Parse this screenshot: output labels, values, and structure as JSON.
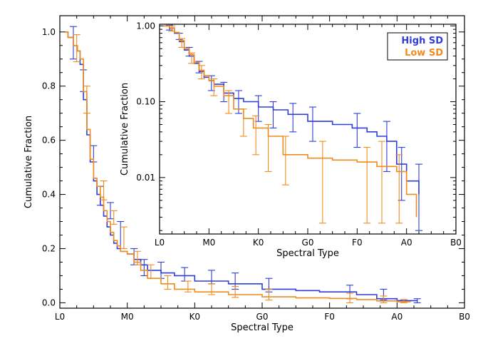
{
  "chart_data": [
    {
      "type": "line",
      "xlabel": "Spectral Type",
      "ylabel": "Cumulative Fraction",
      "x_ticks": [
        "L0",
        "M0",
        "K0",
        "G0",
        "F0",
        "A0",
        "B0"
      ],
      "xlim": [
        0,
        6
      ],
      "ylim": [
        -0.02,
        1.06
      ],
      "y_ticks": [
        "0.0",
        "0.2",
        "0.4",
        "0.6",
        "0.8",
        "1.0"
      ],
      "y_tick_values": [
        0,
        0.2,
        0.4,
        0.6,
        0.8,
        1.0
      ],
      "series": [
        {
          "name": "High SD",
          "color": "#2f3dd9",
          "x": [
            0.08,
            0.12,
            0.2,
            0.26,
            0.3,
            0.35,
            0.4,
            0.45,
            0.5,
            0.55,
            0.6,
            0.65,
            0.7,
            0.75,
            0.8,
            0.85,
            0.9,
            1.0,
            1.1,
            1.2,
            1.3,
            1.5,
            1.7,
            2.0,
            2.5,
            3.0,
            3.5,
            3.85,
            4.4,
            4.7,
            5.0,
            5.3
          ],
          "y": [
            1.0,
            0.98,
            0.95,
            0.93,
            0.88,
            0.75,
            0.62,
            0.52,
            0.45,
            0.4,
            0.36,
            0.32,
            0.28,
            0.25,
            0.22,
            0.2,
            0.19,
            0.18,
            0.16,
            0.14,
            0.12,
            0.11,
            0.1,
            0.08,
            0.07,
            0.05,
            0.045,
            0.04,
            0.03,
            0.015,
            0.008,
            0.005
          ],
          "error_bars": [
            {
              "x": 0.2,
              "y": 0.96,
              "lo": 0.9,
              "hi": 1.02
            },
            {
              "x": 0.35,
              "y": 0.82,
              "lo": 0.78,
              "hi": 0.86
            },
            {
              "x": 0.5,
              "y": 0.55,
              "lo": 0.52,
              "hi": 0.58
            },
            {
              "x": 0.6,
              "y": 0.4,
              "lo": 0.36,
              "hi": 0.43
            },
            {
              "x": 0.75,
              "y": 0.34,
              "lo": 0.31,
              "hi": 0.37
            },
            {
              "x": 0.9,
              "y": 0.24,
              "lo": 0.2,
              "hi": 0.3
            },
            {
              "x": 1.1,
              "y": 0.17,
              "lo": 0.14,
              "hi": 0.2
            },
            {
              "x": 1.25,
              "y": 0.14,
              "lo": 0.1,
              "hi": 0.16
            },
            {
              "x": 1.5,
              "y": 0.12,
              "lo": 0.09,
              "hi": 0.15
            },
            {
              "x": 1.85,
              "y": 0.11,
              "lo": 0.08,
              "hi": 0.13
            },
            {
              "x": 2.25,
              "y": 0.09,
              "lo": 0.07,
              "hi": 0.12
            },
            {
              "x": 2.6,
              "y": 0.08,
              "lo": 0.05,
              "hi": 0.11
            },
            {
              "x": 3.1,
              "y": 0.06,
              "lo": 0.04,
              "hi": 0.09
            },
            {
              "x": 4.3,
              "y": 0.04,
              "lo": 0.015,
              "hi": 0.065
            },
            {
              "x": 4.8,
              "y": 0.03,
              "lo": 0.01,
              "hi": 0.05
            },
            {
              "x": 5.3,
              "y": 0.008,
              "lo": 0.0,
              "hi": 0.015
            }
          ]
        },
        {
          "name": "Low SD",
          "color": "#f08c1e",
          "x": [
            0.08,
            0.12,
            0.2,
            0.26,
            0.3,
            0.35,
            0.4,
            0.45,
            0.5,
            0.55,
            0.6,
            0.65,
            0.7,
            0.75,
            0.8,
            0.85,
            0.9,
            1.0,
            1.1,
            1.2,
            1.3,
            1.5,
            1.7,
            2.0,
            2.5,
            3.0,
            3.5,
            4.0,
            4.4,
            4.7,
            5.0,
            5.2
          ],
          "y": [
            1.0,
            0.98,
            0.95,
            0.93,
            0.9,
            0.78,
            0.64,
            0.53,
            0.46,
            0.43,
            0.39,
            0.34,
            0.3,
            0.26,
            0.23,
            0.21,
            0.19,
            0.18,
            0.15,
            0.12,
            0.09,
            0.07,
            0.05,
            0.04,
            0.03,
            0.022,
            0.018,
            0.016,
            0.012,
            0.007,
            0.004,
            0.003
          ],
          "error_bars": [
            {
              "x": 0.25,
              "y": 0.94,
              "lo": 0.89,
              "hi": 0.99
            },
            {
              "x": 0.4,
              "y": 0.75,
              "lo": 0.7,
              "hi": 0.8
            },
            {
              "x": 0.65,
              "y": 0.42,
              "lo": 0.38,
              "hi": 0.45
            },
            {
              "x": 0.8,
              "y": 0.31,
              "lo": 0.29,
              "hi": 0.34
            },
            {
              "x": 0.95,
              "y": 0.22,
              "lo": 0.2,
              "hi": 0.28
            },
            {
              "x": 1.15,
              "y": 0.16,
              "lo": 0.14,
              "hi": 0.19
            },
            {
              "x": 1.35,
              "y": 0.11,
              "lo": 0.09,
              "hi": 0.14
            },
            {
              "x": 1.6,
              "y": 0.08,
              "lo": 0.05,
              "hi": 0.1
            },
            {
              "x": 1.9,
              "y": 0.07,
              "lo": 0.04,
              "hi": 0.08
            },
            {
              "x": 2.25,
              "y": 0.05,
              "lo": 0.03,
              "hi": 0.07
            },
            {
              "x": 2.6,
              "y": 0.04,
              "lo": 0.02,
              "hi": 0.06
            },
            {
              "x": 3.1,
              "y": 0.03,
              "lo": 0.01,
              "hi": 0.05
            },
            {
              "x": 4.3,
              "y": 0.02,
              "lo": 0.0,
              "hi": 0.035
            },
            {
              "x": 4.8,
              "y": 0.01,
              "lo": 0.0,
              "hi": 0.025
            },
            {
              "x": 5.1,
              "y": 0.005,
              "lo": 0.0,
              "hi": 0.012
            }
          ]
        }
      ]
    },
    {
      "type": "line",
      "xlabel": "Spectral Type",
      "ylabel": "Cumulative Fraction",
      "x_ticks": [
        "L0",
        "M0",
        "K0",
        "G0",
        "F0",
        "A0",
        "B0"
      ],
      "xlim": [
        0,
        6
      ],
      "y_scale": "log",
      "ylim": [
        0.0018,
        1.05
      ],
      "y_ticks": [
        "0.01",
        "0.10",
        "1.00"
      ],
      "y_tick_values": [
        0.01,
        0.1,
        1.0
      ],
      "legend": {
        "position": "top-right",
        "entries": [
          "High SD",
          "Low SD"
        ]
      },
      "series": [
        {
          "name": "High SD",
          "color": "#2f3dd9",
          "x": [
            0.08,
            0.2,
            0.3,
            0.4,
            0.5,
            0.6,
            0.7,
            0.8,
            0.9,
            1.0,
            1.1,
            1.3,
            1.5,
            1.7,
            2.0,
            2.3,
            2.6,
            3.0,
            3.5,
            3.9,
            4.2,
            4.4,
            4.6,
            4.8,
            5.0,
            5.25
          ],
          "y": [
            1.0,
            0.93,
            0.8,
            0.62,
            0.48,
            0.4,
            0.32,
            0.25,
            0.21,
            0.19,
            0.17,
            0.13,
            0.11,
            0.1,
            0.085,
            0.078,
            0.068,
            0.055,
            0.05,
            0.045,
            0.04,
            0.035,
            0.03,
            0.015,
            0.009,
            0.006
          ],
          "error_bars": [
            {
              "x": 0.2,
              "y": 0.95,
              "lo": 0.88,
              "hi": 1.02
            },
            {
              "x": 0.4,
              "y": 0.72,
              "lo": 0.66,
              "hi": 0.8
            },
            {
              "x": 0.6,
              "y": 0.45,
              "lo": 0.4,
              "hi": 0.52
            },
            {
              "x": 0.8,
              "y": 0.28,
              "lo": 0.24,
              "hi": 0.34
            },
            {
              "x": 1.05,
              "y": 0.18,
              "lo": 0.14,
              "hi": 0.22
            },
            {
              "x": 1.3,
              "y": 0.14,
              "lo": 0.1,
              "hi": 0.18
            },
            {
              "x": 1.6,
              "y": 0.1,
              "lo": 0.07,
              "hi": 0.14
            },
            {
              "x": 2.0,
              "y": 0.085,
              "lo": 0.055,
              "hi": 0.12
            },
            {
              "x": 2.3,
              "y": 0.078,
              "lo": 0.045,
              "hi": 0.1
            },
            {
              "x": 2.7,
              "y": 0.068,
              "lo": 0.04,
              "hi": 0.095
            },
            {
              "x": 3.1,
              "y": 0.055,
              "lo": 0.03,
              "hi": 0.085
            },
            {
              "x": 4.0,
              "y": 0.045,
              "lo": 0.025,
              "hi": 0.07
            },
            {
              "x": 4.6,
              "y": 0.03,
              "lo": 0.012,
              "hi": 0.055
            },
            {
              "x": 4.9,
              "y": 0.015,
              "lo": 0.005,
              "hi": 0.025
            },
            {
              "x": 5.25,
              "y": 0.006,
              "lo": 0.002,
              "hi": 0.015
            }
          ]
        },
        {
          "name": "Low SD",
          "color": "#f08c1e",
          "x": [
            0.08,
            0.2,
            0.3,
            0.4,
            0.5,
            0.6,
            0.7,
            0.8,
            0.9,
            1.0,
            1.1,
            1.3,
            1.5,
            1.7,
            1.9,
            2.2,
            2.5,
            3.0,
            3.5,
            4.0,
            4.4,
            4.8,
            5.0,
            5.2
          ],
          "y": [
            1.0,
            0.94,
            0.82,
            0.64,
            0.5,
            0.42,
            0.33,
            0.26,
            0.22,
            0.19,
            0.16,
            0.12,
            0.08,
            0.06,
            0.045,
            0.035,
            0.02,
            0.018,
            0.017,
            0.016,
            0.014,
            0.012,
            0.006,
            0.003
          ],
          "error_bars": [
            {
              "x": 0.25,
              "y": 0.92,
              "lo": 0.85,
              "hi": 1.0
            },
            {
              "x": 0.45,
              "y": 0.6,
              "lo": 0.52,
              "hi": 0.68
            },
            {
              "x": 0.65,
              "y": 0.38,
              "lo": 0.32,
              "hi": 0.44
            },
            {
              "x": 0.85,
              "y": 0.24,
              "lo": 0.2,
              "hi": 0.3
            },
            {
              "x": 1.1,
              "y": 0.16,
              "lo": 0.12,
              "hi": 0.2
            },
            {
              "x": 1.4,
              "y": 0.11,
              "lo": 0.07,
              "hi": 0.14
            },
            {
              "x": 1.7,
              "y": 0.06,
              "lo": 0.035,
              "hi": 0.08
            },
            {
              "x": 1.95,
              "y": 0.045,
              "lo": 0.02,
              "hi": 0.065
            },
            {
              "x": 2.2,
              "y": 0.035,
              "lo": 0.012,
              "hi": 0.05
            },
            {
              "x": 2.55,
              "y": 0.02,
              "lo": 0.008,
              "hi": 0.035
            },
            {
              "x": 3.3,
              "y": 0.018,
              "lo": 0.0025,
              "hi": 0.03
            },
            {
              "x": 4.2,
              "y": 0.015,
              "lo": 0.0025,
              "hi": 0.025
            },
            {
              "x": 4.5,
              "y": 0.014,
              "lo": 0.0025,
              "hi": 0.03
            },
            {
              "x": 4.85,
              "y": 0.01,
              "lo": 0.0025,
              "hi": 0.02
            }
          ]
        }
      ]
    }
  ]
}
